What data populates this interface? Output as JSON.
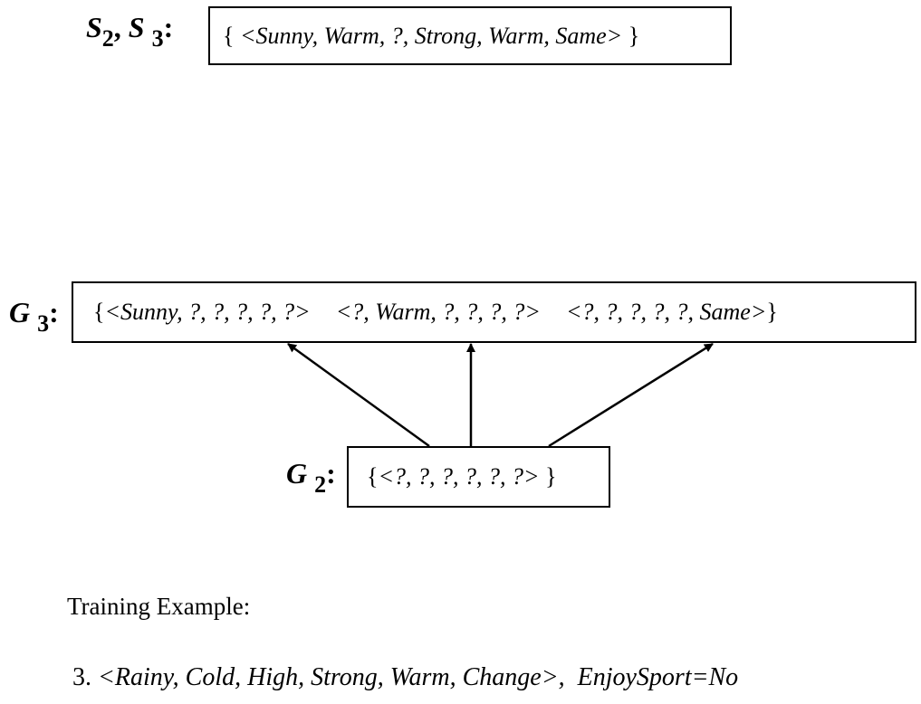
{
  "s_label": {
    "s": "S",
    "sub1": "2",
    "comma": ",",
    "s2": "S",
    "sub2": "3",
    "colon": ":"
  },
  "s_box": {
    "open": "{",
    "content": "<Sunny, Warm, ?, Strong, Warm, Same>",
    "close": "}"
  },
  "g3_label": {
    "g": "G",
    "sub": "3",
    "colon": ":"
  },
  "g3_box": {
    "open": "{",
    "h1": "<Sunny, ?, ?, ?, ?, ?>",
    "h2": "<?, Warm, ?, ?, ?, ?>",
    "h3": "<?, ?, ?, ?, ?, Same>",
    "close": "}"
  },
  "g2_label": {
    "g": "G",
    "sub": "2",
    "colon": ":"
  },
  "g2_box": {
    "open": "{",
    "content": "<?, ?, ?, ?, ?, ?>",
    "close": "}"
  },
  "training": {
    "heading": "Training Example:",
    "number": "3.",
    "example": "<Rainy, Cold, High, Strong, Warm, Change>,",
    "target": "EnjoySport=No"
  }
}
